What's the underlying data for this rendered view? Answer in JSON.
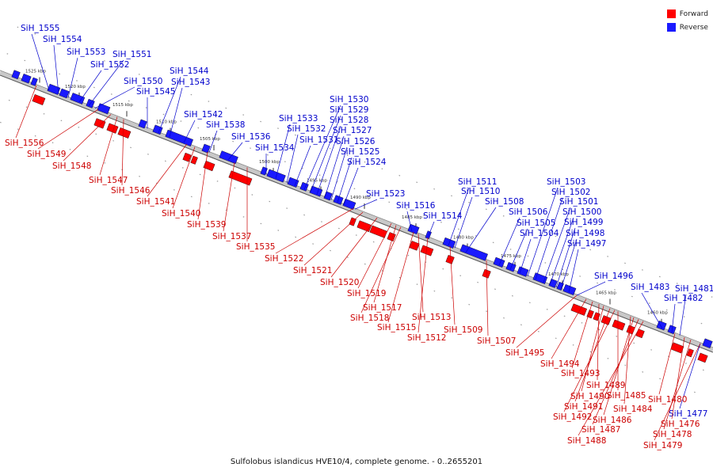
{
  "colors": {
    "forward": "#ff0000",
    "reverse": "#1a1aff",
    "backbone": "#c8c8c8",
    "label_forward": "#cc0000",
    "label_reverse": "#0000cc"
  },
  "legend": [
    {
      "key": "forward",
      "label": "Forward"
    },
    {
      "key": "reverse",
      "label": "Reverse"
    }
  ],
  "caption": "Sulfolobus islandicus HVE10/4, complete genome. - 0..2655201",
  "ticks": [
    "1525 kbp",
    "1520 kbp",
    "1515 kbp",
    "1510 kbp",
    "1505 kbp",
    "1500 kbp",
    "1495 kbp",
    "1490 kbp",
    "1485 kbp",
    "1480 kbp",
    "1475 kbp",
    "1470 kbp",
    "1465 kbp",
    "1460 kbp"
  ],
  "reverse_labels": [
    "SiH_1555",
    "SiH_1554",
    "SiH_1553",
    "SiH_1552",
    "SiH_1551",
    "SiH_1550",
    "SiH_1545",
    "SiH_1544",
    "SiH_1543",
    "SiH_1542",
    "SiH_1538",
    "SiH_1536",
    "SiH_1534",
    "SiH_1533",
    "SiH_1532",
    "SiH_1531",
    "SiH_1530",
    "SiH_1529",
    "SiH_1528",
    "SiH_1527",
    "SiH_1526",
    "SiH_1525",
    "SiH_1524",
    "SiH_1523",
    "SiH_1516",
    "SiH_1514",
    "SiH_1511",
    "SiH_1510",
    "SiH_1508",
    "SiH_1506",
    "SiH_1505",
    "SiH_1504",
    "SiH_1503",
    "SiH_1502",
    "SiH_1501",
    "SiH_1500",
    "SiH_1499",
    "SiH_1498",
    "SiH_1497",
    "SiH_1496",
    "SiH_1483",
    "SiH_1482",
    "SiH_1481",
    "SiH_1477"
  ],
  "forward_labels": [
    "SiH_1556",
    "SiH_1549",
    "SiH_1548",
    "SiH_1547",
    "SiH_1546",
    "SiH_1541",
    "SiH_1540",
    "SiH_1539",
    "SiH_1537",
    "SiH_1535",
    "SiH_1522",
    "SiH_1521",
    "SiH_1520",
    "SiH_1519",
    "SiH_1517",
    "SiH_1518",
    "SiH_1515",
    "SiH_1513",
    "SiH_1512",
    "SiH_1509",
    "SiH_1507",
    "SiH_1495",
    "SiH_1494",
    "SiH_1493",
    "SiH_1489",
    "SiH_1490",
    "SiH_1485",
    "SiH_1491",
    "SiH_1484",
    "SiH_1492",
    "SiH_1486",
    "SiH_1487",
    "SiH_1488",
    "SiH_1480",
    "SiH_1476",
    "SiH_1478",
    "SiH_1479"
  ]
}
